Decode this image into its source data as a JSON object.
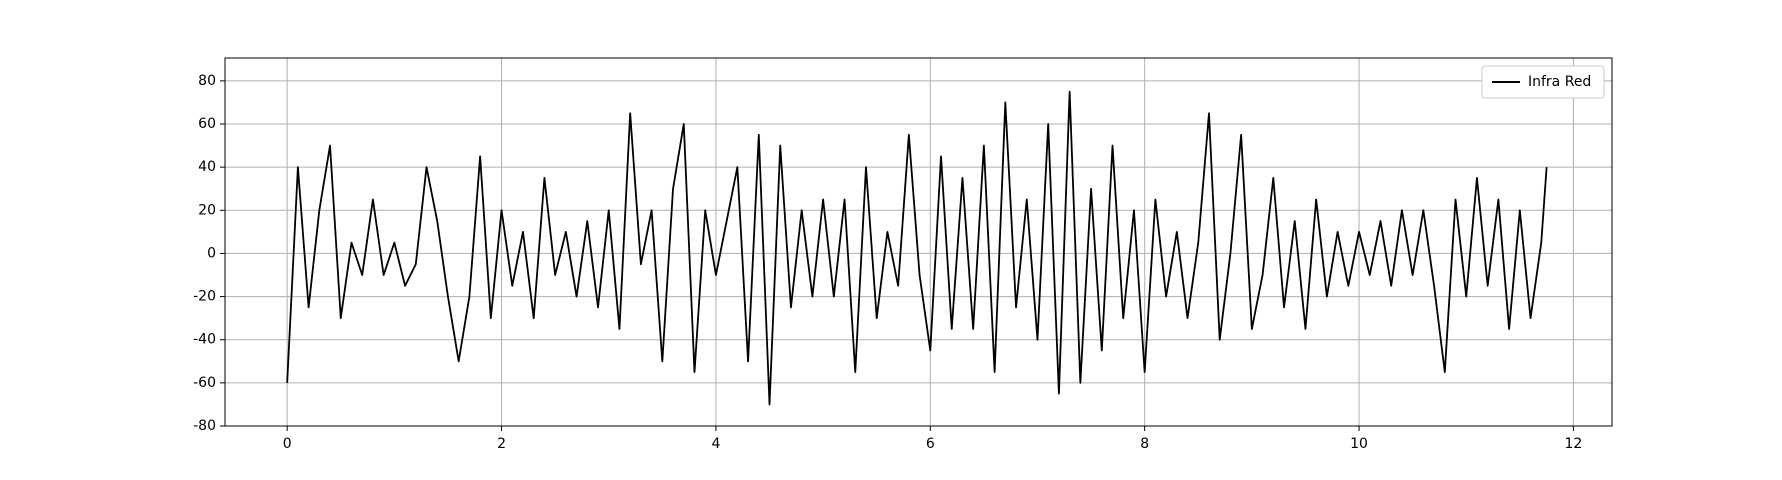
{
  "chart_data": {
    "type": "line",
    "x": [
      0,
      0.1,
      0.2,
      0.3,
      0.4,
      0.5,
      0.6,
      0.7,
      0.8,
      0.9,
      1.0,
      1.1,
      1.2,
      1.3,
      1.4,
      1.5,
      1.6,
      1.7,
      1.8,
      1.9,
      2.0,
      2.1,
      2.2,
      2.3,
      2.4,
      2.5,
      2.6,
      2.7,
      2.8,
      2.9,
      3.0,
      3.1,
      3.2,
      3.3,
      3.4,
      3.5,
      3.6,
      3.7,
      3.8,
      3.9,
      4.0,
      4.1,
      4.2,
      4.3,
      4.4,
      4.5,
      4.6,
      4.7,
      4.8,
      4.9,
      5.0,
      5.1,
      5.2,
      5.3,
      5.4,
      5.5,
      5.6,
      5.7,
      5.8,
      5.9,
      6.0,
      6.1,
      6.2,
      6.3,
      6.4,
      6.5,
      6.6,
      6.7,
      6.8,
      6.9,
      7.0,
      7.1,
      7.2,
      7.3,
      7.4,
      7.5,
      7.6,
      7.7,
      7.8,
      7.9,
      8.0,
      8.1,
      8.2,
      8.3,
      8.4,
      8.5,
      8.6,
      8.7,
      8.8,
      8.9,
      9.0,
      9.1,
      9.2,
      9.3,
      9.4,
      9.5,
      9.6,
      9.7,
      9.8,
      9.9,
      10.0,
      10.1,
      10.2,
      10.3,
      10.4,
      10.5,
      10.6,
      10.7,
      10.8,
      10.9,
      11.0,
      11.1,
      11.2,
      11.3,
      11.4,
      11.5,
      11.6,
      11.7,
      11.75
    ],
    "series": [
      {
        "name": "Infra Red",
        "color": "#000000",
        "values": [
          -60,
          40,
          -25,
          20,
          50,
          -30,
          5,
          -10,
          25,
          -10,
          5,
          -15,
          -5,
          40,
          15,
          -20,
          -50,
          -20,
          45,
          -30,
          20,
          -15,
          10,
          -30,
          35,
          -10,
          10,
          -20,
          15,
          -25,
          20,
          -35,
          65,
          -5,
          20,
          -50,
          30,
          60,
          -55,
          20,
          -10,
          15,
          40,
          -50,
          55,
          -70,
          50,
          -25,
          20,
          -20,
          25,
          -20,
          25,
          -55,
          40,
          -30,
          10,
          -15,
          55,
          -10,
          -45,
          45,
          -35,
          35,
          -35,
          50,
          -55,
          70,
          -25,
          25,
          -40,
          60,
          -65,
          75,
          -60,
          30,
          -45,
          50,
          -30,
          20,
          -55,
          25,
          -20,
          10,
          -30,
          5,
          65,
          -40,
          0,
          55,
          -35,
          -10,
          35,
          -25,
          15,
          -35,
          25,
          -20,
          10,
          -15,
          10,
          -10,
          15,
          -15,
          20,
          -10,
          20,
          -15,
          -55,
          25,
          -20,
          35,
          -15,
          25,
          -35,
          20,
          -30,
          5,
          40
        ]
      }
    ],
    "xlim": [
      -0.58,
      12.36
    ],
    "ylim": [
      -80,
      90.6
    ],
    "xticks": [
      0,
      2,
      4,
      6,
      8,
      10,
      12
    ],
    "yticks": [
      -80,
      -60,
      -40,
      -20,
      0,
      20,
      40,
      60,
      80
    ],
    "grid": true,
    "legend": "upper right"
  }
}
